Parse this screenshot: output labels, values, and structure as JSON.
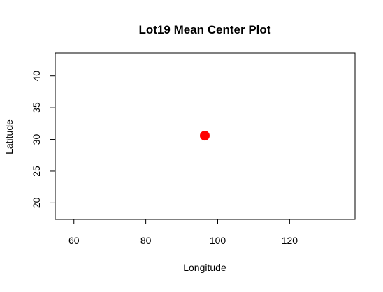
{
  "chart_data": {
    "type": "scatter",
    "title": "Lot19 Mean Center Plot",
    "xlabel": "Longitude",
    "ylabel": "Latitude",
    "xlim": [
      54.8,
      138.2
    ],
    "ylim": [
      17.4,
      43.6
    ],
    "xticks": [
      60,
      80,
      100,
      120
    ],
    "yticks": [
      20,
      25,
      30,
      35,
      40
    ],
    "grid": false,
    "points": [
      {
        "x": 96.4,
        "y": 30.6
      }
    ],
    "colors": {
      "point": "#ff0000",
      "axis": "#000000",
      "background": "#ffffff"
    }
  }
}
